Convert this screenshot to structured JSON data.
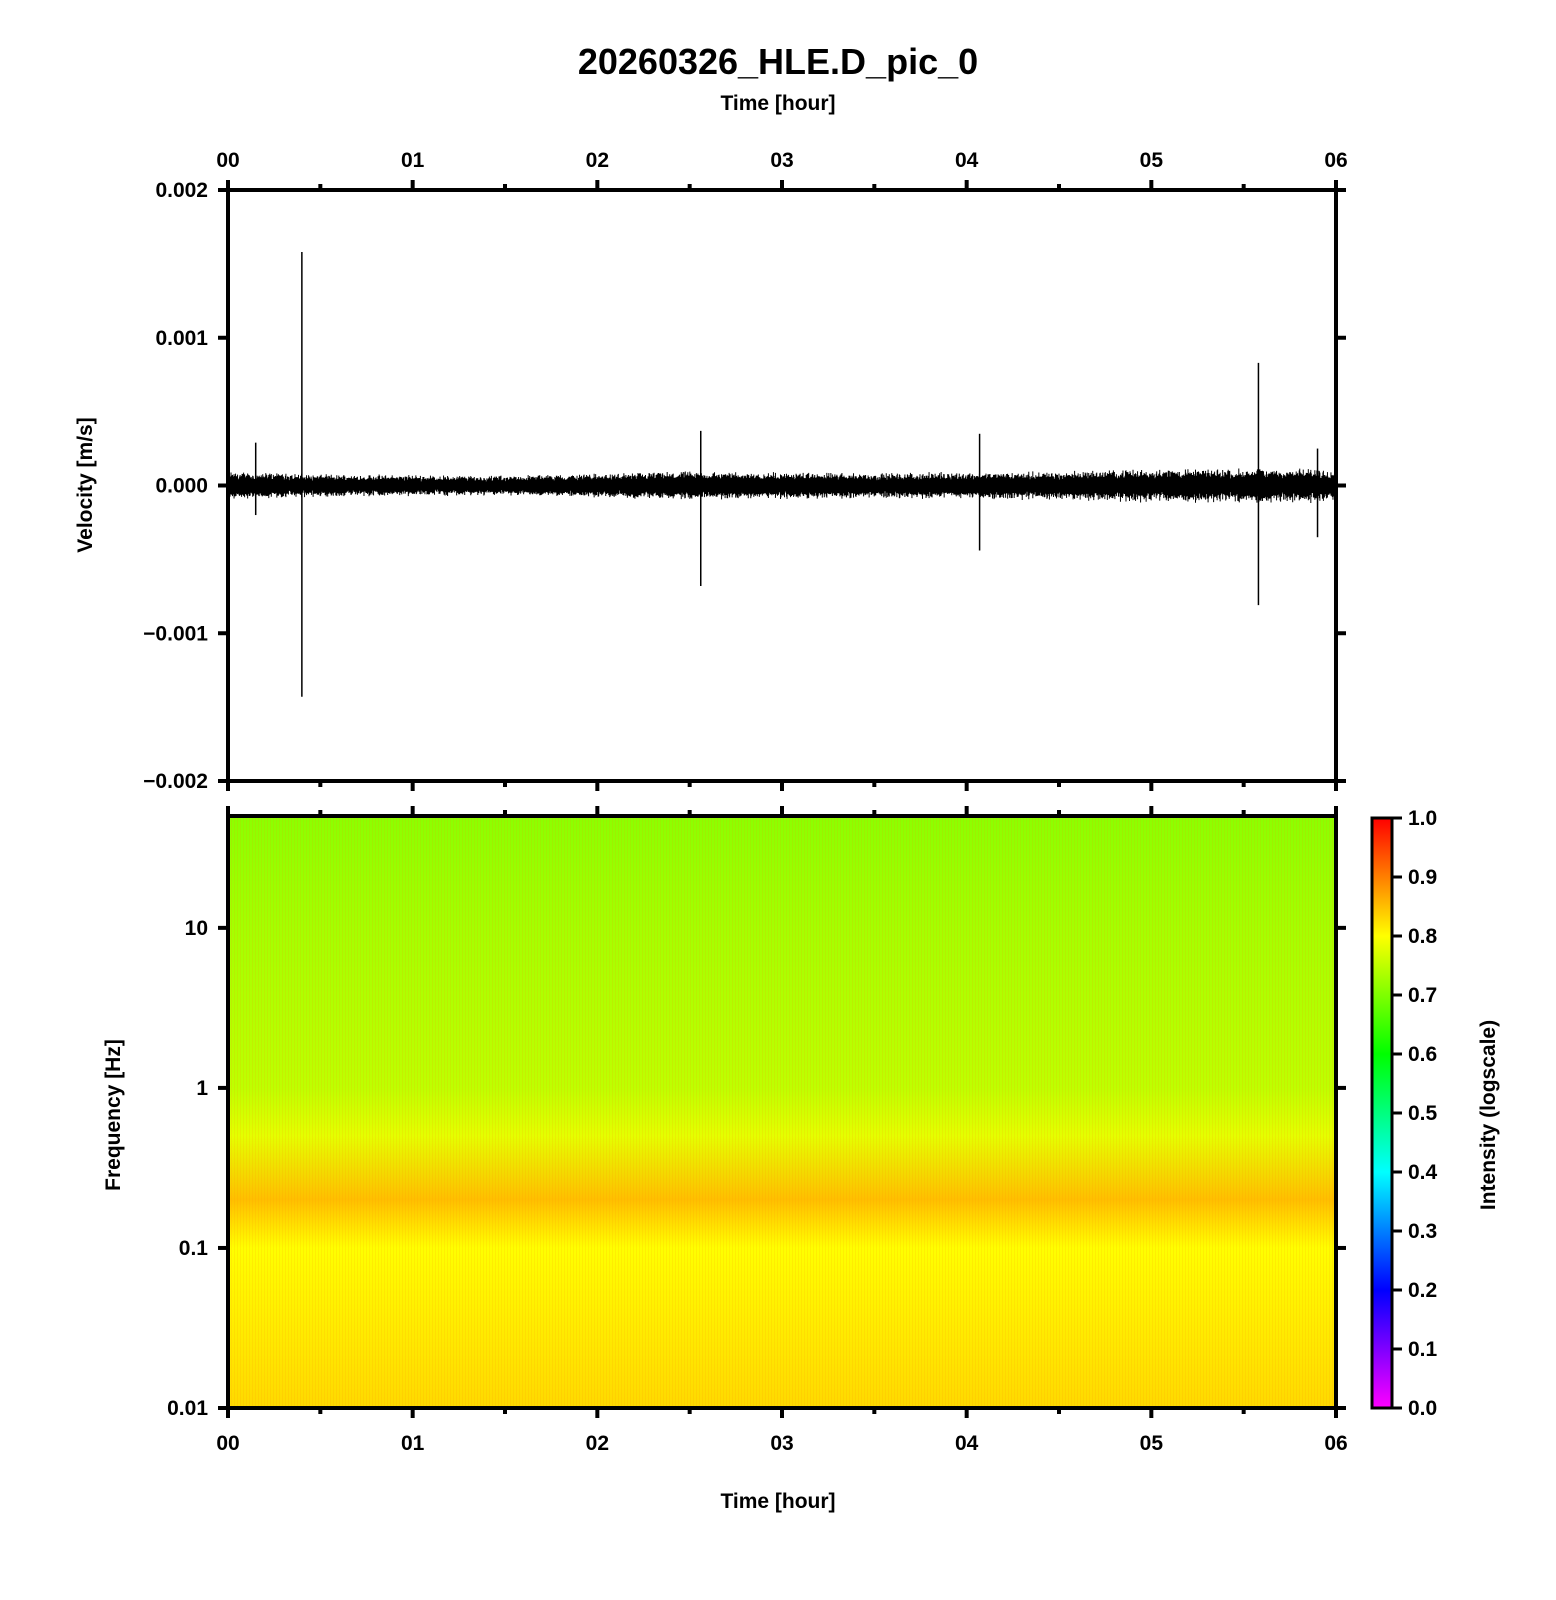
{
  "chart_data": [
    {
      "type": "line",
      "title": "20260326_HLE.D_pic_0",
      "xlabel": "Time [hour]",
      "ylabel": "Velocity [m/s]",
      "xlim": [
        0,
        6
      ],
      "ylim": [
        -0.002,
        0.002
      ],
      "x_ticks": [
        "00",
        "01",
        "02",
        "03",
        "04",
        "05",
        "06"
      ],
      "y_ticks": [
        "0.002",
        "0.001",
        "0.000",
        "−0.001",
        "−0.002"
      ],
      "grid": false,
      "series": [
        {
          "color": "#000000",
          "noise_envelope_m_per_s": [
            {
              "x": 0.0,
              "amp": 0.0001
            },
            {
              "x": 0.5,
              "amp": 8e-05
            },
            {
              "x": 1.5,
              "amp": 7e-05
            },
            {
              "x": 2.5,
              "amp": 0.0001
            },
            {
              "x": 3.5,
              "amp": 9e-05
            },
            {
              "x": 4.5,
              "amp": 0.0001
            },
            {
              "x": 5.0,
              "amp": 0.00012
            },
            {
              "x": 6.0,
              "amp": 0.00012
            }
          ],
          "spikes": [
            {
              "x": 0.4,
              "max": 0.00158,
              "min": -0.00143
            },
            {
              "x": 2.56,
              "max": 0.00037,
              "min": -0.00068
            },
            {
              "x": 4.07,
              "max": 0.00035,
              "min": -0.00044
            },
            {
              "x": 5.58,
              "max": 0.00083,
              "min": -0.00081
            },
            {
              "x": 0.15,
              "max": 0.00029,
              "min": -0.0002
            },
            {
              "x": 5.9,
              "max": 0.00025,
              "min": -0.00035
            }
          ]
        }
      ]
    },
    {
      "type": "heatmap",
      "xlabel": "Time [hour]",
      "ylabel": "Frequency [Hz]",
      "xlim": [
        0,
        6
      ],
      "ylim": [
        0.01,
        50
      ],
      "y_scale": "log",
      "x_ticks": [
        "00",
        "01",
        "02",
        "03",
        "04",
        "05",
        "06"
      ],
      "y_ticks": [
        "10",
        "1",
        "0.1",
        "0.01"
      ],
      "colorbar": {
        "label": "Intensity (logscale)",
        "range": [
          0,
          1
        ],
        "ticks": [
          "1.0",
          "0.9",
          "0.8",
          "0.7",
          "0.6",
          "0.5",
          "0.4",
          "0.3",
          "0.2",
          "0.1",
          "0.0"
        ],
        "colors": [
          "#ff00ff",
          "#7f00ff",
          "#0000ff",
          "#007fff",
          "#00ffff",
          "#00ff7f",
          "#00ff00",
          "#7fff00",
          "#ffff00",
          "#ff7f00",
          "#ff0000"
        ]
      },
      "intensity_profile": [
        {
          "freq_hz": 0.01,
          "intensity": 0.83
        },
        {
          "freq_hz": 0.1,
          "intensity": 0.8
        },
        {
          "freq_hz": 0.2,
          "intensity": 0.85
        },
        {
          "freq_hz": 0.5,
          "intensity": 0.78
        },
        {
          "freq_hz": 1,
          "intensity": 0.75
        },
        {
          "freq_hz": 10,
          "intensity": 0.73
        },
        {
          "freq_hz": 50,
          "intensity": 0.71
        }
      ]
    }
  ]
}
